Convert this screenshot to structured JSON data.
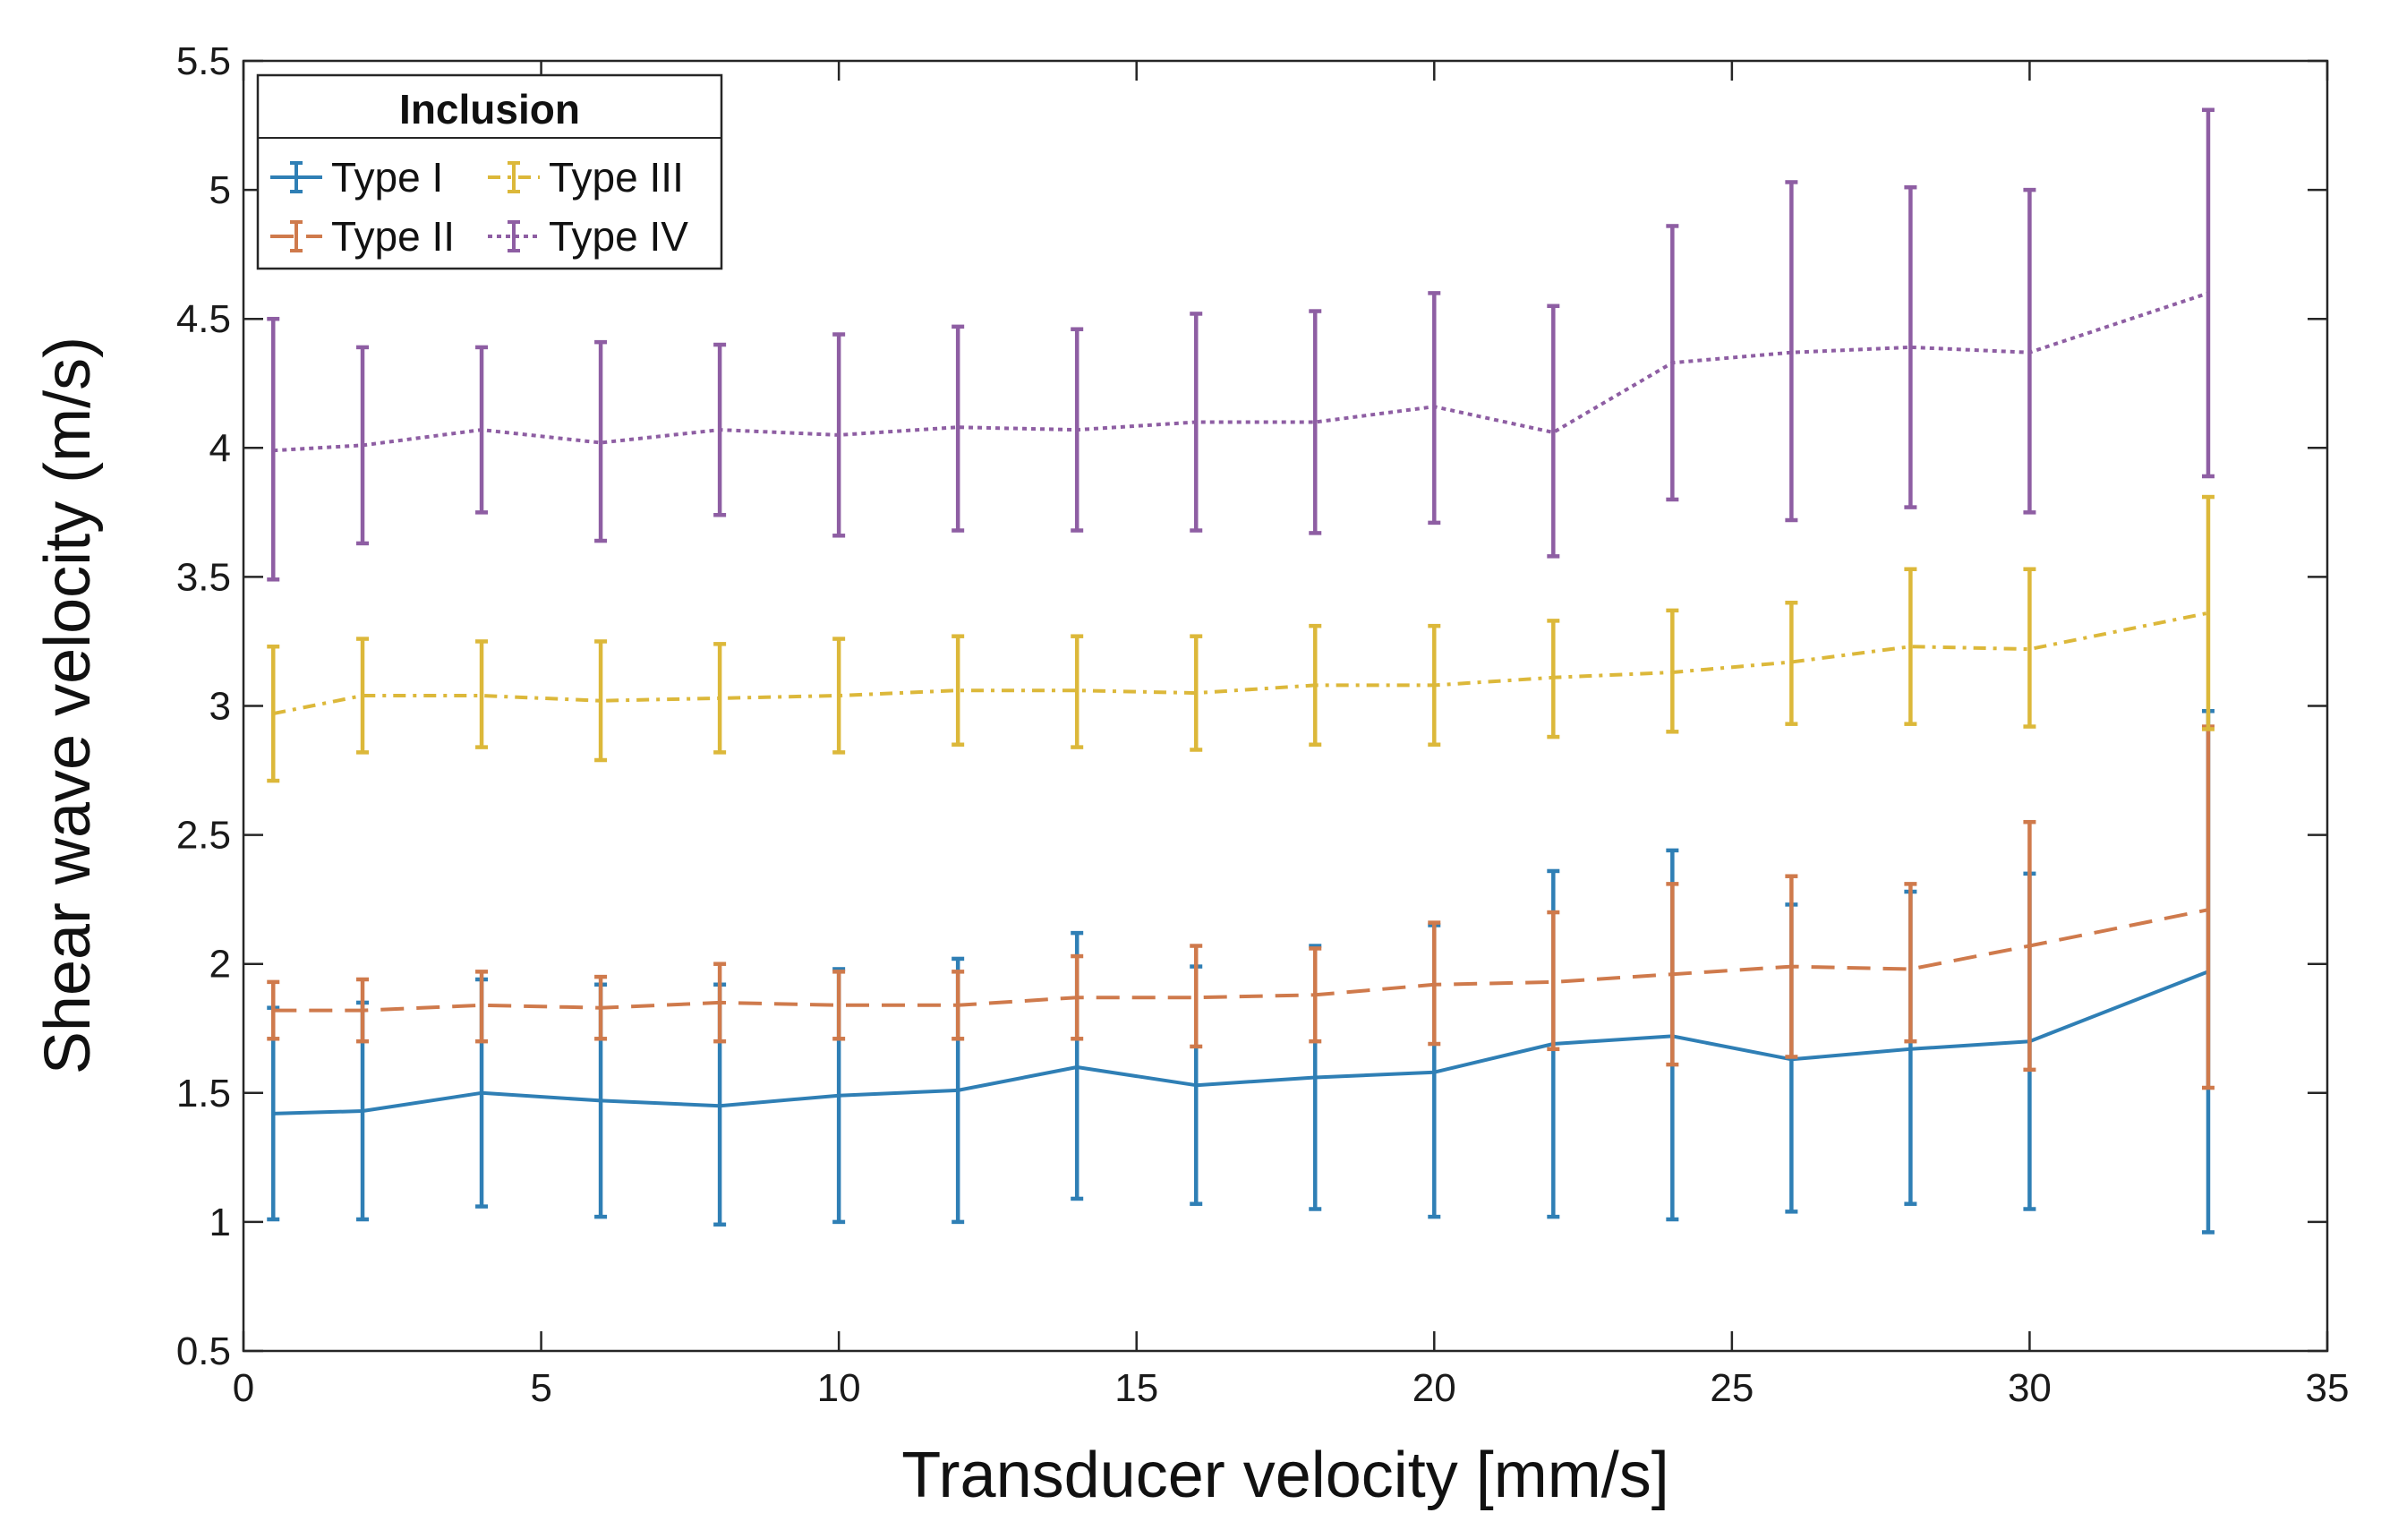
{
  "chart_data": {
    "type": "line",
    "title": "",
    "xlabel": "Transducer velocity [mm/s]",
    "ylabel": "Shear wave velocity (m/s)",
    "xlim": [
      0,
      35
    ],
    "ylim": [
      0.5,
      5.5
    ],
    "xticks": [
      0,
      5,
      10,
      15,
      20,
      25,
      30,
      35
    ],
    "yticks": [
      0.5,
      1,
      1.5,
      2,
      2.5,
      3,
      3.5,
      4,
      4.5,
      5,
      5.5
    ],
    "xtick_labels": [
      "0",
      "5",
      "10",
      "15",
      "20",
      "25",
      "30",
      "35"
    ],
    "ytick_labels": [
      "0.5",
      "1",
      "1.5",
      "2",
      "2.5",
      "3",
      "3.5",
      "4",
      "4.5",
      "5",
      "5.5"
    ],
    "grid": false,
    "legend": {
      "title": "Inclusion",
      "position": "top-left",
      "columns": 2
    },
    "x": [
      0.5,
      2,
      4,
      6,
      8,
      10,
      12,
      14,
      16,
      18,
      20,
      22,
      24,
      26,
      28,
      30,
      33
    ],
    "series": [
      {
        "name": "Type I",
        "color": "#2f7fb5",
        "line_style": "solid",
        "values": [
          1.42,
          1.43,
          1.5,
          1.47,
          1.45,
          1.49,
          1.51,
          1.6,
          1.53,
          1.56,
          1.58,
          1.69,
          1.72,
          1.63,
          1.67,
          1.7,
          1.97
        ],
        "lower": [
          1.01,
          1.01,
          1.06,
          1.02,
          0.99,
          1.0,
          1.0,
          1.09,
          1.07,
          1.05,
          1.02,
          1.02,
          1.01,
          1.04,
          1.07,
          1.05,
          0.96
        ],
        "upper": [
          1.83,
          1.85,
          1.94,
          1.92,
          1.92,
          1.98,
          2.02,
          2.12,
          1.99,
          2.07,
          2.15,
          2.36,
          2.44,
          2.23,
          2.28,
          2.35,
          2.98
        ]
      },
      {
        "name": "Type II",
        "color": "#cf7a4c",
        "line_style": "dashed",
        "values": [
          1.82,
          1.82,
          1.84,
          1.83,
          1.85,
          1.84,
          1.84,
          1.87,
          1.87,
          1.88,
          1.92,
          1.93,
          1.96,
          1.99,
          1.98,
          2.07,
          2.21
        ],
        "lower": [
          1.71,
          1.7,
          1.7,
          1.71,
          1.7,
          1.71,
          1.71,
          1.71,
          1.68,
          1.7,
          1.69,
          1.67,
          1.61,
          1.64,
          1.7,
          1.59,
          1.52
        ],
        "upper": [
          1.93,
          1.94,
          1.97,
          1.95,
          2.0,
          1.97,
          1.97,
          2.03,
          2.07,
          2.06,
          2.16,
          2.2,
          2.31,
          2.34,
          2.31,
          2.55,
          2.92
        ]
      },
      {
        "name": "Type III",
        "color": "#dcb83a",
        "line_style": "dash-dot",
        "values": [
          2.97,
          3.04,
          3.04,
          3.02,
          3.03,
          3.04,
          3.06,
          3.06,
          3.05,
          3.08,
          3.08,
          3.11,
          3.13,
          3.17,
          3.23,
          3.22,
          3.36
        ],
        "lower": [
          2.71,
          2.82,
          2.84,
          2.79,
          2.82,
          2.82,
          2.85,
          2.84,
          2.83,
          2.85,
          2.85,
          2.88,
          2.9,
          2.93,
          2.93,
          2.92,
          2.91
        ],
        "upper": [
          3.23,
          3.26,
          3.25,
          3.25,
          3.24,
          3.26,
          3.27,
          3.27,
          3.27,
          3.31,
          3.31,
          3.33,
          3.37,
          3.4,
          3.53,
          3.53,
          3.81
        ]
      },
      {
        "name": "Type IV",
        "color": "#8e5ea3",
        "line_style": "dotted",
        "values": [
          3.99,
          4.01,
          4.07,
          4.02,
          4.07,
          4.05,
          4.08,
          4.07,
          4.1,
          4.1,
          4.16,
          4.06,
          4.33,
          4.37,
          4.39,
          4.37,
          4.6
        ],
        "lower": [
          3.49,
          3.63,
          3.75,
          3.64,
          3.74,
          3.66,
          3.68,
          3.68,
          3.68,
          3.67,
          3.71,
          3.58,
          3.8,
          3.72,
          3.77,
          3.75,
          3.89
        ],
        "upper": [
          4.5,
          4.39,
          4.39,
          4.41,
          4.4,
          4.44,
          4.47,
          4.46,
          4.52,
          4.53,
          4.6,
          4.55,
          4.86,
          5.03,
          5.01,
          5.0,
          5.31
        ]
      }
    ]
  }
}
